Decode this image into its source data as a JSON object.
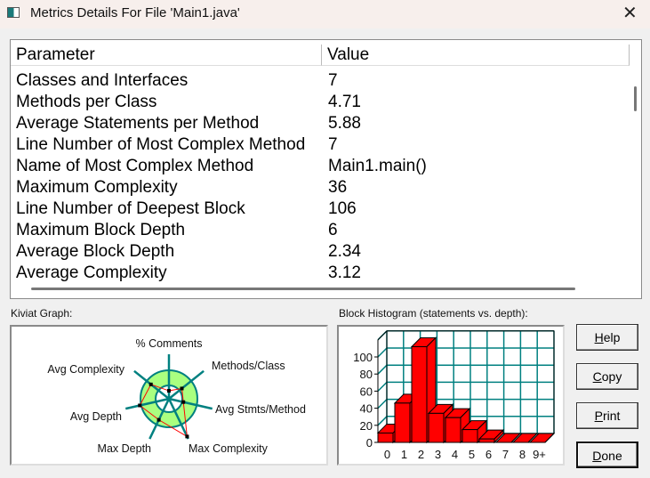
{
  "window": {
    "title": "Metrics Details For File 'Main1.java'",
    "icon": "app-window-icon",
    "close_icon": "close-icon"
  },
  "table": {
    "headers": [
      "Parameter",
      "Value"
    ],
    "rows": [
      [
        "Classes and Interfaces",
        "7"
      ],
      [
        "Methods per Class",
        "4.71"
      ],
      [
        "Average Statements per Method",
        "5.88"
      ],
      [
        "Line Number of Most Complex Method",
        "7"
      ],
      [
        "Name of Most Complex Method",
        "Main1.main()"
      ],
      [
        "Maximum Complexity",
        "36"
      ],
      [
        "Line Number of Deepest Block",
        "106"
      ],
      [
        "Maximum Block Depth",
        "6"
      ],
      [
        "Average Block Depth",
        "2.34"
      ],
      [
        "Average Complexity",
        "3.12"
      ]
    ]
  },
  "kiviat": {
    "label": "Kiviat Graph:",
    "axes": [
      "% Comments",
      "Methods/Class",
      "Avg Stmts/Method",
      "Max Complexity",
      "Max Depth",
      "Avg Depth",
      "Avg Complexity"
    ],
    "levels": [
      0.28,
      0.58,
      0.52,
      1.47,
      0.82,
      1.05,
      0.81
    ],
    "colors": {
      "ring": "#aaff80",
      "axis": "#008080",
      "polygon": "#ff0000"
    }
  },
  "chart_data": {
    "type": "bar",
    "title": "Block Histogram (statements vs. depth):",
    "categories": [
      "0",
      "1",
      "2",
      "3",
      "4",
      "5",
      "6",
      "7",
      "8",
      "9+"
    ],
    "values": [
      11,
      46,
      112,
      34,
      29,
      15,
      4,
      0,
      0,
      0
    ],
    "yticks": [
      "0",
      "20",
      "40",
      "60",
      "80",
      "100"
    ],
    "ylim": [
      0,
      120
    ],
    "grid": true,
    "colors": {
      "bar": "#ff0000",
      "grid": "#008080"
    }
  },
  "buttons": {
    "help": [
      "H",
      "elp"
    ],
    "copy": [
      "C",
      "opy"
    ],
    "print": [
      "P",
      "rint"
    ],
    "done": [
      "D",
      "one"
    ]
  }
}
